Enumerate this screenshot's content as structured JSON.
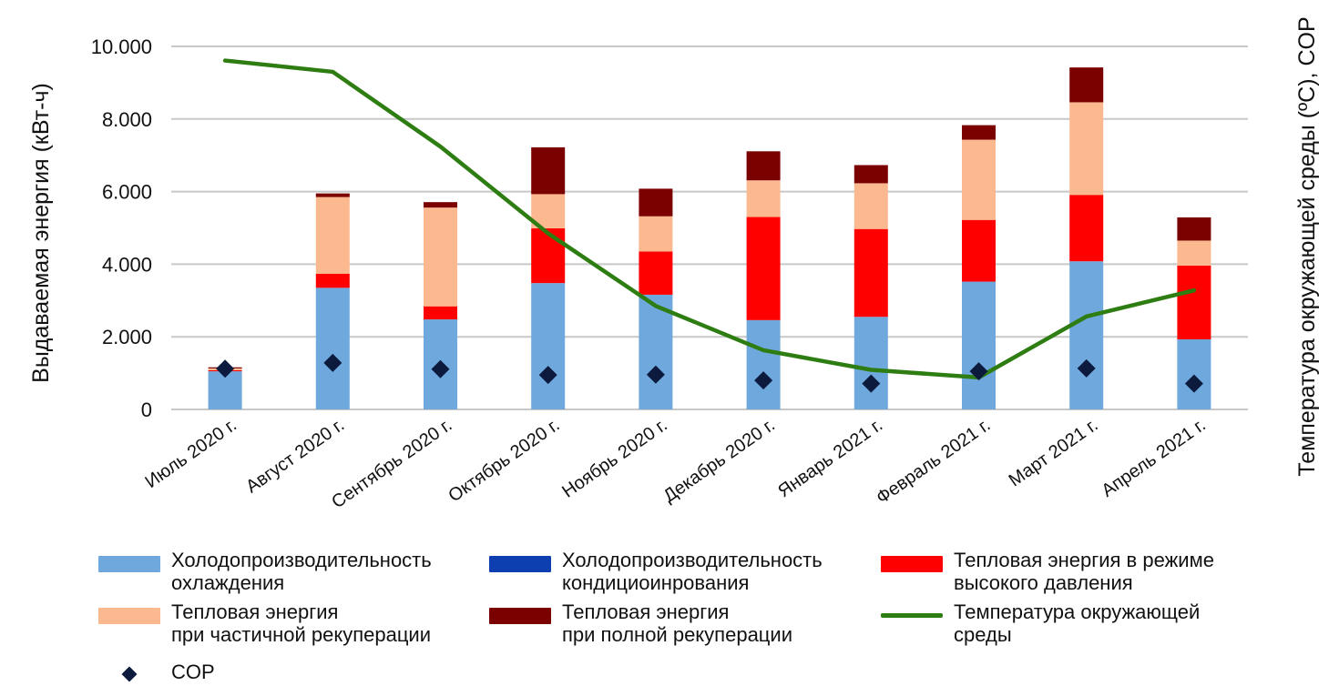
{
  "chart_data": {
    "type": "bar",
    "subtype": "stacked bar with line and scatter overlay (secondary axis)",
    "title": "",
    "xlabel": "",
    "ylabel": "Выдаваемая энергия (кВт-ч)",
    "y2label": "Температура окружающей среды (ºС), COP",
    "ylim": [
      0,
      10000
    ],
    "yticks": [
      0,
      2000,
      4000,
      6000,
      8000,
      10000
    ],
    "ytick_labels": [
      "0",
      "2.000",
      "4.000",
      "6.000",
      "8.000",
      "10.000"
    ],
    "y2_ticks_shown": false,
    "grid": true,
    "legend_position": "bottom",
    "categories": [
      "Июль 2020 г.",
      "Август 2020 г.",
      "Сентябрь 2020 г.",
      "Октябрь 2020 г.",
      "Ноябрь 2020 г.",
      "Декабрь 2020 г.",
      "Январь 2021 г.",
      "Февраль 2021 г.",
      "Март 2021 г.",
      "Апрель 2021 г."
    ],
    "series": [
      {
        "name": "Холодопроизводительность охлаждения",
        "type": "bar",
        "stack": "energy",
        "color": "#6fa8dc",
        "values": [
          1050,
          3350,
          2480,
          3480,
          3160,
          2460,
          2550,
          3520,
          4080,
          1930
        ]
      },
      {
        "name": "Холодопроизводительность кондициоинрования",
        "type": "bar",
        "stack": "energy",
        "color": "#0d3fb0",
        "values": [
          0,
          0,
          0,
          0,
          0,
          0,
          0,
          0,
          0,
          0
        ]
      },
      {
        "name": "Тепловая энергия в режиме высокого давления",
        "type": "bar",
        "stack": "energy",
        "color": "#ff0000",
        "values": [
          30,
          390,
          360,
          1510,
          1190,
          2840,
          2420,
          1700,
          1830,
          2030
        ]
      },
      {
        "name": "Тепловая энергия при частичной рекуперации",
        "type": "bar",
        "stack": "energy",
        "color": "#fcb98f",
        "values": [
          50,
          2110,
          2720,
          940,
          970,
          1010,
          1260,
          2210,
          2550,
          690
        ]
      },
      {
        "name": "Тепловая энергия при полной рекуперации",
        "type": "bar",
        "stack": "energy",
        "color": "#7b0000",
        "values": [
          30,
          100,
          150,
          1290,
          760,
          800,
          500,
          400,
          960,
          640
        ]
      },
      {
        "name": "Температура окружающей среды",
        "type": "line",
        "axis": "secondary",
        "color": "#2e7d12",
        "values_in_primary_axis_units": [
          9610,
          9300,
          7240,
          4850,
          2850,
          1630,
          1090,
          880,
          2560,
          3280
        ]
      },
      {
        "name": "COP",
        "type": "scatter",
        "marker": "diamond",
        "axis": "secondary",
        "color": "#0b1a3d",
        "values_in_primary_axis_units": [
          1120,
          1280,
          1110,
          950,
          960,
          800,
          710,
          1050,
          1130,
          710
        ]
      }
    ]
  },
  "legend": [
    {
      "label": "Холодопроизводительность\nохлаждения",
      "color": "#6fa8dc",
      "kind": "bar"
    },
    {
      "label": "Холодопроизводительность\nкондициоинрования",
      "color": "#0d3fb0",
      "kind": "bar"
    },
    {
      "label": "Тепловая энергия в режиме\nвысокого давления",
      "color": "#ff0000",
      "kind": "bar"
    },
    {
      "label": "Тепловая энергия\nпри частичной рекуперации",
      "color": "#fcb98f",
      "kind": "bar"
    },
    {
      "label": "Тепловая энергия\nпри полной рекуперации",
      "color": "#7b0000",
      "kind": "bar"
    },
    {
      "label": "Температура окружающей\nсреды",
      "color": "#2e7d12",
      "kind": "line"
    },
    {
      "label": "COP",
      "color": "#0b1a3d",
      "kind": "diamond"
    }
  ]
}
